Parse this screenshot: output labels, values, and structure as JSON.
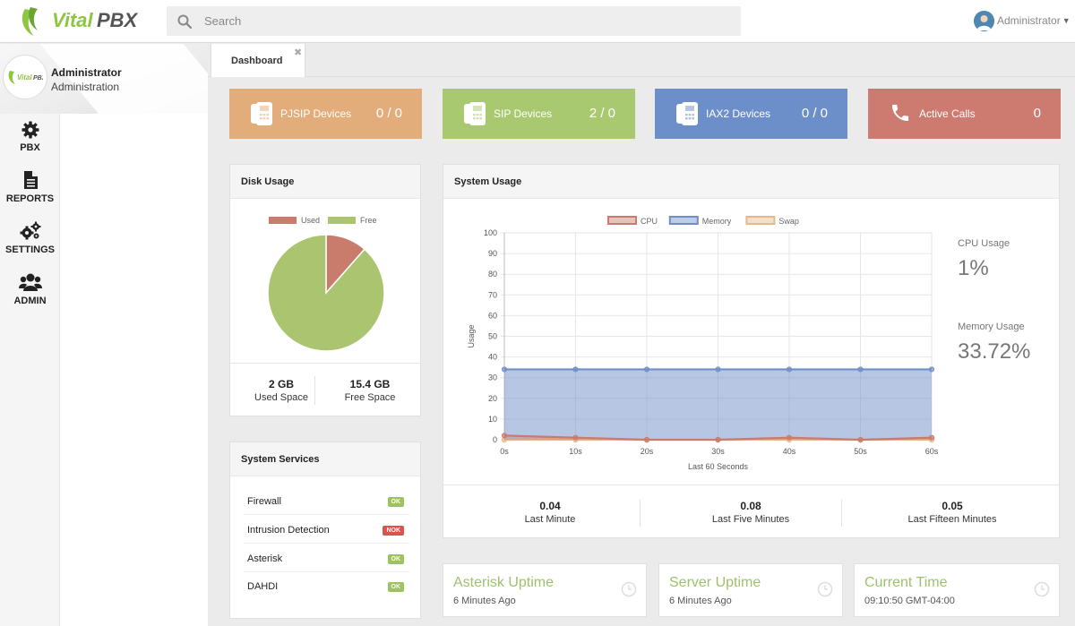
{
  "app": {
    "logo_text": "VitalPBX"
  },
  "search": {
    "placeholder": "Search"
  },
  "user": {
    "name": "Administrator"
  },
  "profile": {
    "name": "Administrator",
    "role": "Administration"
  },
  "nav": [
    {
      "label": "PBX",
      "icon": "gear-icon"
    },
    {
      "label": "REPORTS",
      "icon": "document-icon"
    },
    {
      "label": "SETTINGS",
      "icon": "gears-icon"
    },
    {
      "label": "ADMIN",
      "icon": "users-icon"
    }
  ],
  "tabs": [
    {
      "label": "Dashboard"
    }
  ],
  "stats": [
    {
      "label": "PJSIP Devices",
      "value": "0 / 0",
      "color": "#e2ad7b",
      "icon": "phone-device-icon"
    },
    {
      "label": "SIP Devices",
      "value": "2 / 0",
      "color": "#a9c971",
      "icon": "phone-device-icon"
    },
    {
      "label": "IAX2 Devices",
      "value": "0 / 0",
      "color": "#6d8fc9",
      "icon": "phone-device-icon"
    },
    {
      "label": "Active Calls",
      "value": "0",
      "color": "#cd7b70",
      "icon": "phone-icon"
    }
  ],
  "disk": {
    "title": "Disk Usage",
    "legend_used": "Used",
    "legend_free": "Free",
    "used_value": "2 GB",
    "used_caption": "Used Space",
    "free_value": "15.4 GB",
    "free_caption": "Free Space",
    "colors": {
      "used": "#c97b6c",
      "free": "#aac46f"
    }
  },
  "services": {
    "title": "System Services",
    "items": [
      {
        "name": "Firewall",
        "status": "OK"
      },
      {
        "name": "Intrusion Detection",
        "status": "NOK"
      },
      {
        "name": "Asterisk",
        "status": "OK"
      },
      {
        "name": "DAHDI",
        "status": "OK"
      }
    ],
    "colors": {
      "ok": "#9cc35f",
      "nok": "#d9534f"
    }
  },
  "system_usage": {
    "title": "System Usage",
    "cpu_caption": "CPU Usage",
    "cpu_value": "1%",
    "memory_caption": "Memory Usage",
    "memory_value": "33.72%"
  },
  "load": [
    {
      "value": "0.04",
      "caption": "Last Minute"
    },
    {
      "value": "0.08",
      "caption": "Last Five Minutes"
    },
    {
      "value": "0.05",
      "caption": "Last Fifteen Minutes"
    }
  ],
  "info_cards": [
    {
      "title": "Asterisk Uptime",
      "value": "6 Minutes Ago"
    },
    {
      "title": "Server Uptime",
      "value": "6 Minutes Ago"
    },
    {
      "title": "Current Time",
      "value": "09:10:50 GMT-04:00"
    }
  ],
  "chart_data": [
    {
      "type": "pie",
      "categories": [
        "Used",
        "Free"
      ],
      "values": [
        2,
        15.4
      ],
      "colors": [
        "#c97b6c",
        "#aac46f"
      ],
      "legend": "top"
    },
    {
      "type": "area",
      "xlabel": "Last 60 Seconds",
      "ylabel": "Usage",
      "categories": [
        "0s",
        "10s",
        "20s",
        "30s",
        "40s",
        "50s",
        "60s"
      ],
      "ylim": [
        0,
        100
      ],
      "yticks": [
        0,
        10,
        20,
        30,
        40,
        50,
        60,
        70,
        80,
        90,
        100
      ],
      "grid": true,
      "legend": "top",
      "series": [
        {
          "name": "CPU",
          "values": [
            2,
            1,
            0,
            0,
            1,
            0,
            1
          ],
          "color": "#c97b6c"
        },
        {
          "name": "Memory",
          "values": [
            34,
            34,
            34,
            34,
            34,
            34,
            34
          ],
          "color": "#6f8fc8"
        },
        {
          "name": "Swap",
          "values": [
            0,
            0,
            0,
            0,
            0,
            0,
            0
          ],
          "color": "#e6b98a"
        }
      ]
    }
  ]
}
